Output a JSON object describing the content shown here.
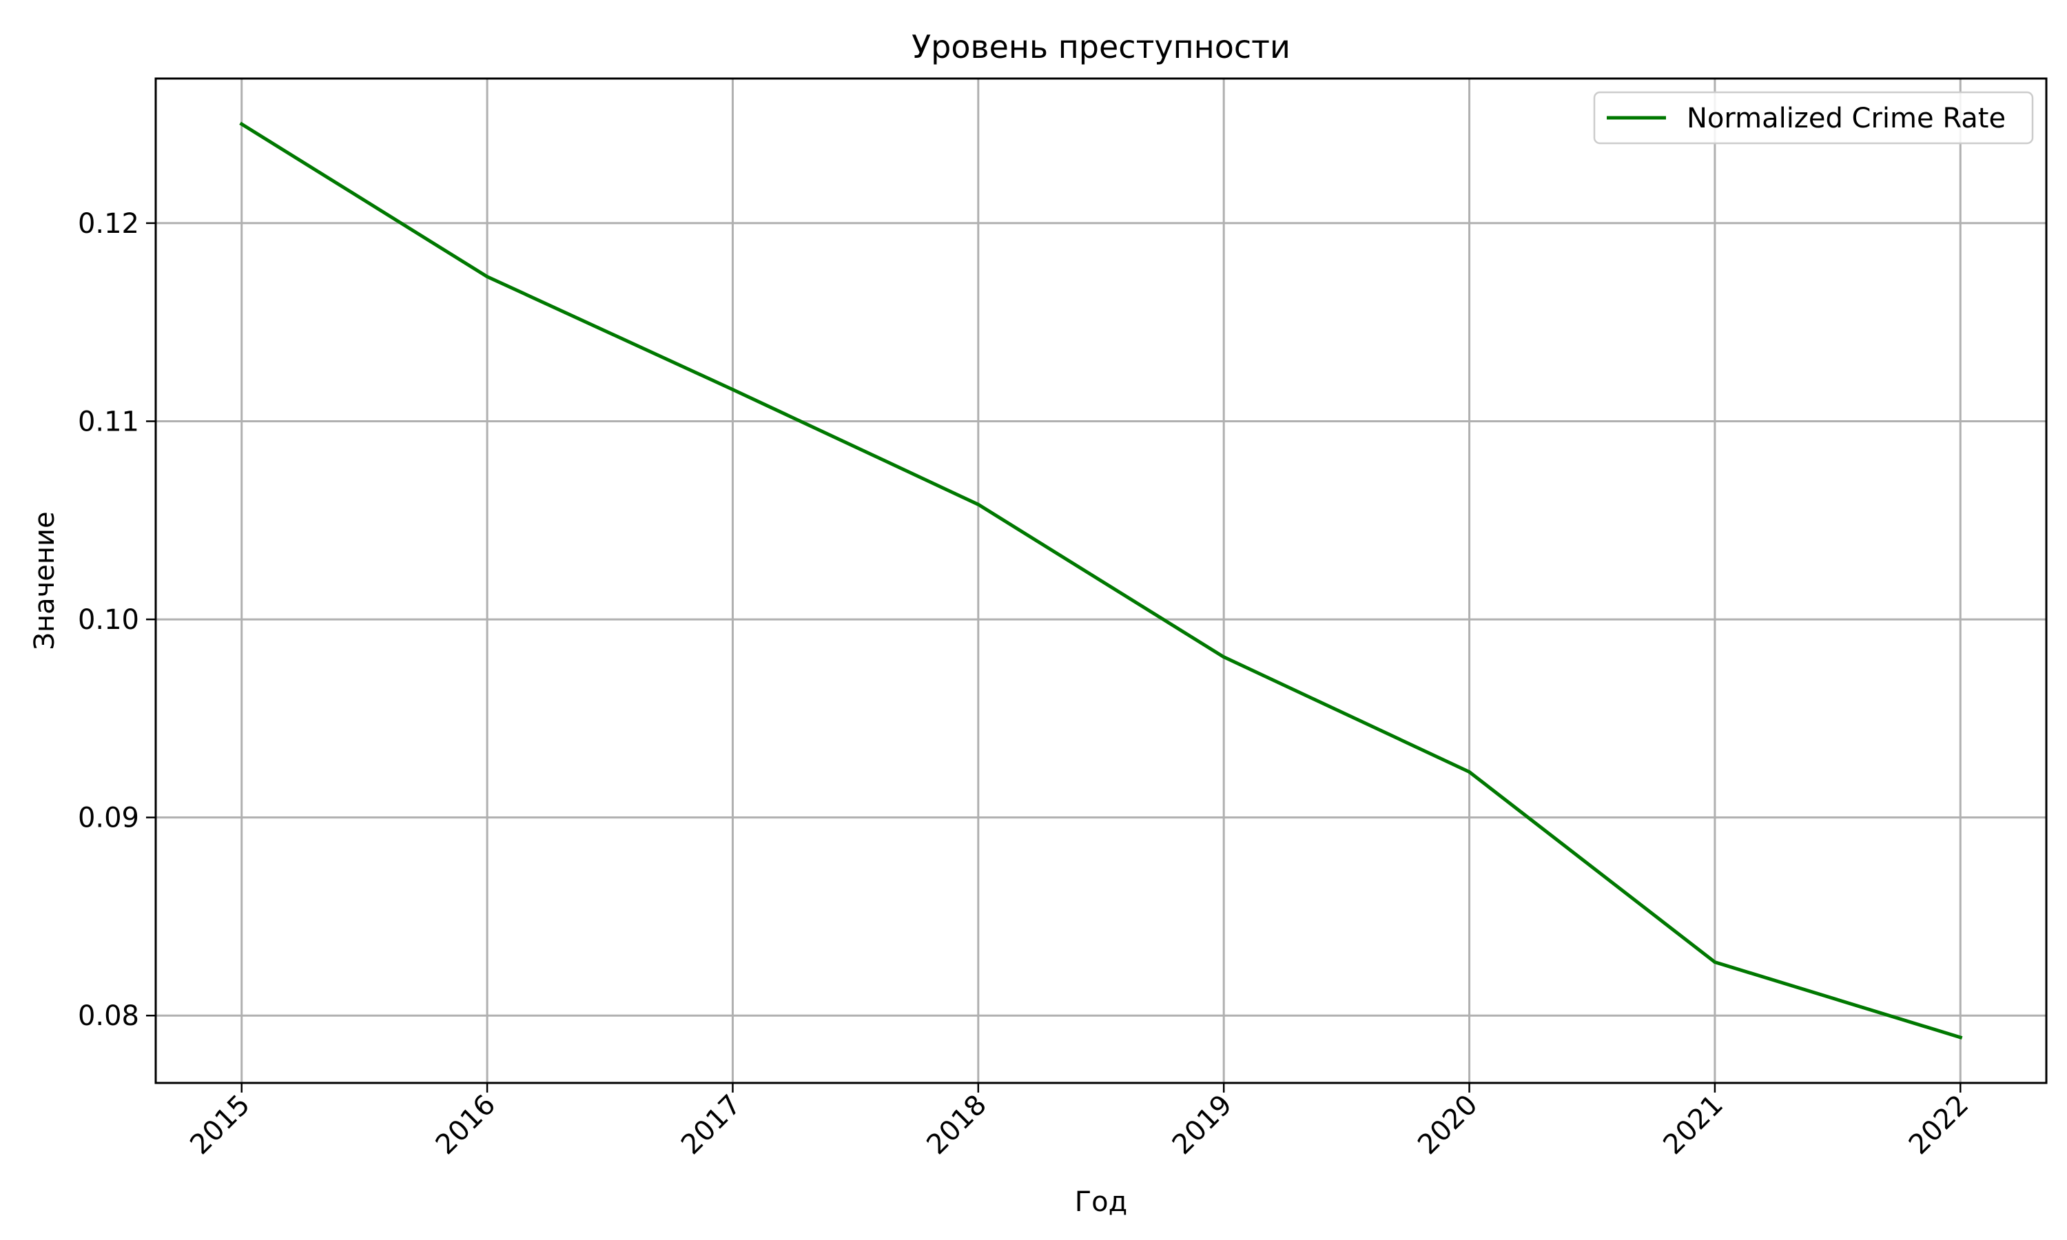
{
  "chart_data": {
    "type": "line",
    "title": "Уровень преступности",
    "xlabel": "Год",
    "ylabel": "Значение",
    "x": [
      2015,
      2016,
      2017,
      2018,
      2019,
      2020,
      2021,
      2022
    ],
    "x_tick_labels": [
      "2015",
      "2016",
      "2017",
      "2018",
      "2019",
      "2020",
      "2021",
      "2022"
    ],
    "y_ticks": [
      0.08,
      0.09,
      0.1,
      0.11,
      0.12
    ],
    "y_tick_labels": [
      "0.08",
      "0.09",
      "0.10",
      "0.11",
      "0.12"
    ],
    "xlim": [
      2014.65,
      2022.35
    ],
    "ylim": [
      0.0766,
      0.1273
    ],
    "grid": true,
    "legend_position": "top-right",
    "series": [
      {
        "name": "Normalized Crime Rate",
        "color": "#007800",
        "values": [
          0.125,
          0.1173,
          0.1116,
          0.1058,
          0.0981,
          0.0923,
          0.0827,
          0.0789
        ]
      }
    ]
  }
}
